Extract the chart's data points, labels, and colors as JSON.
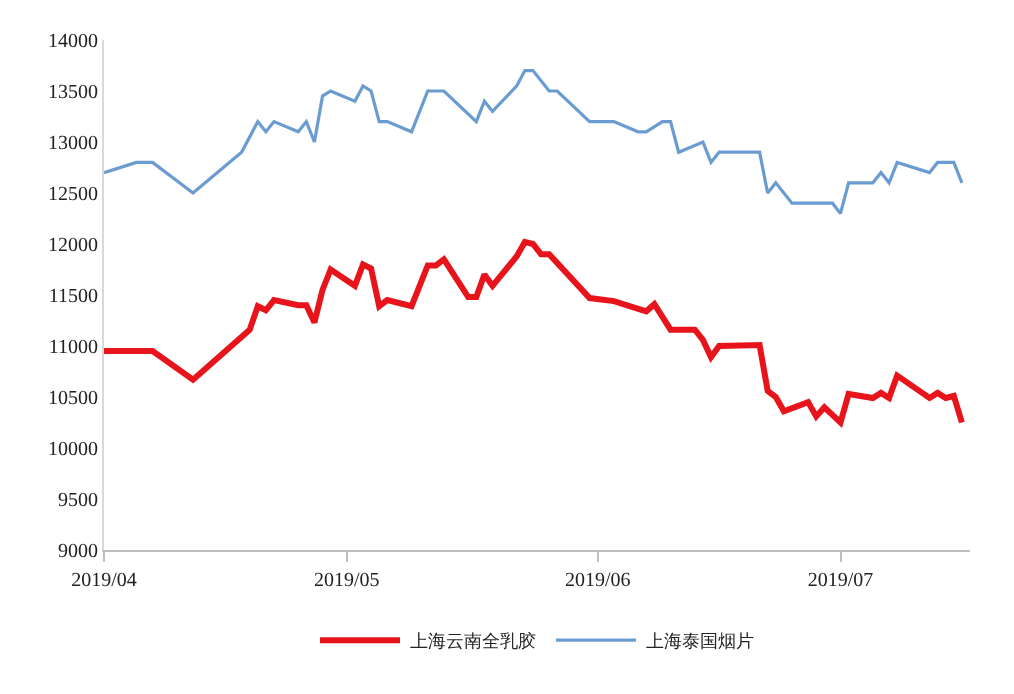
{
  "chart_data": {
    "type": "line",
    "ylim": [
      9000,
      14000
    ],
    "yticks": [
      9000,
      9500,
      10000,
      10500,
      11000,
      11500,
      12000,
      12500,
      13000,
      13500,
      14000
    ],
    "xlim": [
      "2019-04-01",
      "2019-07-17"
    ],
    "xticks": [
      {
        "value": "2019-04-01",
        "label": "2019/04"
      },
      {
        "value": "2019-05-01",
        "label": "2019/05"
      },
      {
        "value": "2019-06-01",
        "label": "2019/06"
      },
      {
        "value": "2019-07-01",
        "label": "2019/07"
      }
    ],
    "grid": false,
    "legend": "bottom",
    "marker": "none",
    "line_style": "solid",
    "series": [
      {
        "name": "上海云南全乳胶",
        "color": "#e8141b",
        "x": [
          "2019-04-01",
          "2019-04-07",
          "2019-04-12",
          "2019-04-19",
          "2019-04-20",
          "2019-04-21",
          "2019-04-22",
          "2019-04-25",
          "2019-04-26",
          "2019-04-27",
          "2019-04-28",
          "2019-04-29",
          "2019-05-02",
          "2019-05-03",
          "2019-05-04",
          "2019-05-05",
          "2019-05-06",
          "2019-05-09",
          "2019-05-11",
          "2019-05-12",
          "2019-05-13",
          "2019-05-16",
          "2019-05-17",
          "2019-05-18",
          "2019-05-19",
          "2019-05-22",
          "2019-05-23",
          "2019-05-24",
          "2019-05-25",
          "2019-05-26",
          "2019-05-31",
          "2019-06-03",
          "2019-06-07",
          "2019-06-08",
          "2019-06-10",
          "2019-06-13",
          "2019-06-14",
          "2019-06-15",
          "2019-06-16",
          "2019-06-21",
          "2019-06-22",
          "2019-06-23",
          "2019-06-24",
          "2019-06-27",
          "2019-06-28",
          "2019-06-29",
          "2019-07-01",
          "2019-07-02",
          "2019-07-05",
          "2019-07-06",
          "2019-07-07",
          "2019-07-08",
          "2019-07-12",
          "2019-07-13",
          "2019-07-14",
          "2019-07-15",
          "2019-07-16"
        ],
        "values": [
          10950,
          10950,
          10670,
          11160,
          11390,
          11350,
          11450,
          11400,
          11400,
          11230,
          11550,
          11750,
          11590,
          11800,
          11760,
          11390,
          11450,
          11390,
          11790,
          11790,
          11850,
          11480,
          11480,
          11700,
          11590,
          11880,
          12020,
          12000,
          11900,
          11900,
          11470,
          11440,
          11340,
          11410,
          11160,
          11160,
          11060,
          10890,
          11000,
          11010,
          10560,
          10500,
          10360,
          10450,
          10310,
          10400,
          10250,
          10530,
          10490,
          10540,
          10490,
          10710,
          10490,
          10540,
          10490,
          10510,
          10250
        ]
      },
      {
        "name": "上海泰国烟片",
        "color": "#6a9bd1",
        "x": [
          "2019-04-01",
          "2019-04-05",
          "2019-04-07",
          "2019-04-12",
          "2019-04-18",
          "2019-04-20",
          "2019-04-21",
          "2019-04-22",
          "2019-04-25",
          "2019-04-26",
          "2019-04-27",
          "2019-04-28",
          "2019-04-29",
          "2019-05-02",
          "2019-05-03",
          "2019-05-04",
          "2019-05-05",
          "2019-05-06",
          "2019-05-09",
          "2019-05-11",
          "2019-05-13",
          "2019-05-17",
          "2019-05-18",
          "2019-05-19",
          "2019-05-22",
          "2019-05-23",
          "2019-05-24",
          "2019-05-26",
          "2019-05-27",
          "2019-05-31",
          "2019-06-03",
          "2019-06-06",
          "2019-06-07",
          "2019-06-09",
          "2019-06-10",
          "2019-06-11",
          "2019-06-14",
          "2019-06-15",
          "2019-06-16",
          "2019-06-21",
          "2019-06-22",
          "2019-06-23",
          "2019-06-25",
          "2019-06-30",
          "2019-07-01",
          "2019-07-02",
          "2019-07-05",
          "2019-07-06",
          "2019-07-07",
          "2019-07-08",
          "2019-07-12",
          "2019-07-13",
          "2019-07-15",
          "2019-07-16"
        ],
        "values": [
          12700,
          12800,
          12800,
          12500,
          12900,
          13200,
          13100,
          13200,
          13100,
          13200,
          13000,
          13450,
          13500,
          13400,
          13550,
          13500,
          13200,
          13200,
          13100,
          13500,
          13500,
          13200,
          13400,
          13300,
          13550,
          13700,
          13700,
          13500,
          13500,
          13200,
          13200,
          13100,
          13100,
          13200,
          13200,
          12900,
          13000,
          12800,
          12900,
          12900,
          12500,
          12600,
          12400,
          12400,
          12300,
          12600,
          12600,
          12700,
          12600,
          12800,
          12700,
          12800,
          12800,
          12600
        ]
      }
    ]
  }
}
